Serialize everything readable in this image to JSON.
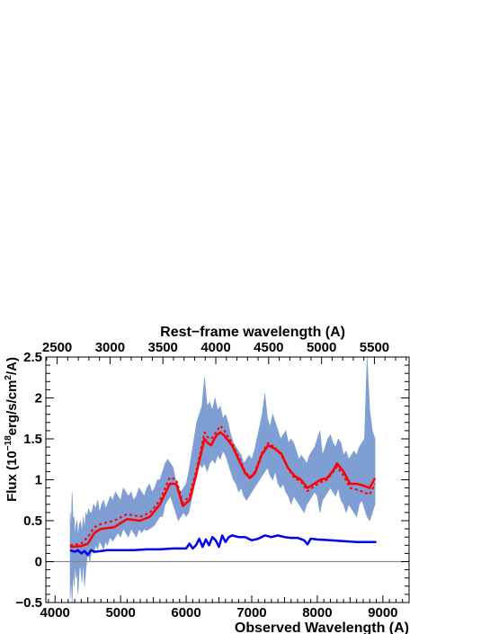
{
  "chart_data": {
    "type": "line",
    "xlabel": "Observed Wavelength (A)",
    "ylabel_prefix": "Flux (10",
    "ylabel_exp1": "−18",
    "ylabel_mid": "erg/s/cm",
    "ylabel_exp2": "2",
    "ylabel_suffix": "/A)",
    "top_xlabel": "Rest−frame wavelength (A)",
    "xlim": [
      3860,
      9400
    ],
    "ylim": [
      -0.5,
      2.5
    ],
    "x_ticks": [
      4000,
      5000,
      6000,
      7000,
      8000,
      9000
    ],
    "y_ticks": [
      -0.5,
      0,
      0.5,
      1,
      1.5,
      2,
      2.5
    ],
    "y_tick_labels": [
      "−0.5",
      "0",
      "0.5",
      "1",
      "1.5",
      "2",
      "2.5"
    ],
    "top_ticks": [
      2500,
      3000,
      3500,
      4000,
      4500,
      5000,
      5500
    ],
    "top_axis_observed_per_rest": 1.613,
    "zero_line": 0,
    "colors": {
      "observed": "#7f9fd4",
      "model": "#ff0000",
      "model_alt": "#ff0000",
      "sky": "#0000ee",
      "zero_line": "#888888"
    },
    "series": [
      {
        "key": "model",
        "style": "solid",
        "x": [
          4230,
          4400,
          4500,
          4600,
          4700,
          4900,
          5100,
          5300,
          5450,
          5600,
          5750,
          5850,
          5950,
          6050,
          6150,
          6220,
          6280,
          6330,
          6380,
          6430,
          6470,
          6520,
          6570,
          6620,
          6700,
          6800,
          6900,
          6970,
          7050,
          7150,
          7250,
          7350,
          7450,
          7550,
          7650,
          7750,
          7850,
          7950,
          8050,
          8150,
          8250,
          8300,
          8400,
          8500,
          8600,
          8700,
          8800,
          8880
        ],
        "y": [
          0.18,
          0.19,
          0.22,
          0.35,
          0.4,
          0.42,
          0.52,
          0.5,
          0.55,
          0.7,
          0.95,
          0.95,
          0.68,
          0.75,
          1.05,
          1.3,
          1.5,
          1.45,
          1.42,
          1.5,
          1.55,
          1.58,
          1.55,
          1.5,
          1.42,
          1.25,
          1.08,
          1.02,
          1.08,
          1.3,
          1.42,
          1.38,
          1.32,
          1.15,
          1.05,
          1.0,
          0.9,
          0.95,
          1.0,
          1.02,
          1.12,
          1.2,
          1.1,
          0.95,
          0.95,
          0.93,
          0.9,
          1.02
        ]
      },
      {
        "key": "model_alt",
        "style": "dashed",
        "x": [
          4230,
          4400,
          4500,
          4600,
          4700,
          4900,
          5100,
          5300,
          5450,
          5600,
          5750,
          5850,
          5950,
          6050,
          6150,
          6220,
          6280,
          6330,
          6380,
          6430,
          6470,
          6520,
          6570,
          6620,
          6700,
          6800,
          6900,
          6970,
          7050,
          7150,
          7250,
          7350,
          7450,
          7550,
          7650,
          7750,
          7850,
          7950,
          8050,
          8150,
          8250,
          8300,
          8400,
          8500,
          8600,
          8700,
          8800,
          8880
        ],
        "y": [
          0.2,
          0.22,
          0.3,
          0.42,
          0.46,
          0.5,
          0.58,
          0.55,
          0.6,
          0.75,
          1.03,
          1.0,
          0.72,
          0.8,
          1.1,
          1.35,
          1.58,
          1.52,
          1.5,
          1.55,
          1.6,
          1.66,
          1.62,
          1.55,
          1.45,
          1.28,
          1.1,
          1.03,
          1.1,
          1.32,
          1.45,
          1.4,
          1.3,
          1.15,
          1.02,
          0.98,
          0.86,
          0.92,
          0.97,
          1.0,
          1.1,
          1.16,
          1.05,
          0.9,
          0.88,
          0.85,
          0.82,
          0.95
        ]
      },
      {
        "key": "sky",
        "style": "solid",
        "x": [
          4230,
          4300,
          4350,
          4400,
          4450,
          4500,
          4550,
          4600,
          4700,
          4800,
          5000,
          5200,
          5400,
          5600,
          5800,
          6000,
          6050,
          6100,
          6150,
          6200,
          6250,
          6300,
          6350,
          6400,
          6450,
          6500,
          6550,
          6600,
          6650,
          6700,
          6800,
          6900,
          7000,
          7100,
          7200,
          7300,
          7400,
          7500,
          7600,
          7700,
          7800,
          7850,
          7900,
          8000,
          8200,
          8400,
          8600,
          8800,
          8900
        ],
        "y": [
          0.14,
          0.12,
          0.14,
          0.1,
          0.13,
          0.08,
          0.14,
          0.12,
          0.13,
          0.14,
          0.14,
          0.14,
          0.15,
          0.15,
          0.16,
          0.16,
          0.22,
          0.16,
          0.2,
          0.28,
          0.18,
          0.27,
          0.2,
          0.3,
          0.26,
          0.18,
          0.32,
          0.24,
          0.3,
          0.32,
          0.3,
          0.3,
          0.26,
          0.28,
          0.32,
          0.3,
          0.32,
          0.3,
          0.29,
          0.29,
          0.26,
          0.21,
          0.28,
          0.27,
          0.26,
          0.25,
          0.24,
          0.24,
          0.24
        ]
      }
    ],
    "observed": {
      "key": "observed",
      "x": [
        4230,
        4245,
        4260,
        4275,
        4290,
        4305,
        4320,
        4335,
        4350,
        4370,
        4390,
        4410,
        4430,
        4450,
        4470,
        4490,
        4510,
        4530,
        4560,
        4590,
        4620,
        4650,
        4680,
        4710,
        4740,
        4770,
        4800,
        4840,
        4880,
        4920,
        4960,
        5000,
        5040,
        5080,
        5120,
        5160,
        5200,
        5240,
        5280,
        5320,
        5360,
        5400,
        5440,
        5480,
        5520,
        5560,
        5600,
        5640,
        5680,
        5720,
        5760,
        5800,
        5840,
        5880,
        5920,
        5960,
        6000,
        6040,
        6080,
        6120,
        6160,
        6200,
        6240,
        6280,
        6320,
        6360,
        6400,
        6440,
        6480,
        6520,
        6560,
        6600,
        6640,
        6680,
        6720,
        6760,
        6800,
        6840,
        6880,
        6920,
        6960,
        7000,
        7040,
        7080,
        7120,
        7160,
        7200,
        7240,
        7280,
        7320,
        7360,
        7400,
        7440,
        7480,
        7520,
        7560,
        7600,
        7640,
        7680,
        7720,
        7760,
        7800,
        7840,
        7880,
        7920,
        7960,
        8000,
        8040,
        8080,
        8120,
        8160,
        8200,
        8240,
        8280,
        8320,
        8360,
        8400,
        8440,
        8480,
        8520,
        8560,
        8600,
        8640,
        8680,
        8720,
        8760,
        8800,
        8840,
        8880
      ],
      "lo": [
        -0.45,
        -0.2,
        -0.5,
        -0.1,
        -0.3,
        0.0,
        -0.2,
        -0.1,
        -0.4,
        -0.1,
        -0.05,
        -0.25,
        0.0,
        -0.3,
        -0.1,
        0.05,
        0.1,
        0.0,
        0.15,
        0.1,
        0.2,
        0.15,
        0.25,
        0.2,
        0.15,
        0.25,
        0.2,
        0.3,
        0.25,
        0.3,
        0.35,
        0.3,
        0.4,
        0.35,
        0.3,
        0.4,
        0.35,
        0.3,
        0.4,
        0.35,
        0.4,
        0.38,
        0.4,
        0.42,
        0.45,
        0.5,
        0.55,
        0.55,
        0.7,
        0.75,
        0.8,
        0.7,
        0.6,
        0.5,
        0.55,
        0.6,
        0.55,
        0.6,
        0.75,
        0.9,
        1.1,
        1.2,
        1.15,
        1.2,
        1.1,
        1.2,
        1.25,
        1.2,
        1.3,
        1.25,
        1.35,
        1.3,
        1.2,
        1.1,
        1.0,
        0.95,
        0.85,
        0.9,
        0.8,
        0.75,
        0.8,
        0.85,
        0.9,
        0.95,
        1.0,
        1.05,
        1.1,
        1.15,
        1.05,
        1.0,
        1.1,
        0.95,
        0.9,
        0.95,
        0.85,
        0.8,
        0.7,
        0.8,
        0.75,
        0.7,
        0.65,
        0.6,
        0.7,
        0.75,
        0.8,
        0.85,
        0.8,
        0.6,
        0.75,
        0.8,
        0.85,
        0.9,
        0.85,
        0.8,
        0.9,
        0.75,
        0.7,
        0.6,
        0.7,
        0.65,
        0.6,
        0.55,
        0.7,
        0.75,
        0.65,
        0.55,
        0.5,
        0.6,
        0.7
      ],
      "hi": [
        0.6,
        0.4,
        0.85,
        0.5,
        0.55,
        0.3,
        0.45,
        0.5,
        0.3,
        0.45,
        0.5,
        0.35,
        0.55,
        0.4,
        0.6,
        0.55,
        0.65,
        0.6,
        0.6,
        0.7,
        0.65,
        0.75,
        0.6,
        0.7,
        0.75,
        0.65,
        0.7,
        0.8,
        0.75,
        0.85,
        0.8,
        0.75,
        0.9,
        0.85,
        0.8,
        0.85,
        0.75,
        0.8,
        0.9,
        0.85,
        0.8,
        0.9,
        0.95,
        0.85,
        0.9,
        1.0,
        1.0,
        1.1,
        1.2,
        1.25,
        1.2,
        1.15,
        1.0,
        0.9,
        0.85,
        0.9,
        0.95,
        1.1,
        1.3,
        1.5,
        1.7,
        1.8,
        1.9,
        2.25,
        1.9,
        1.95,
        1.85,
        2.0,
        1.85,
        1.9,
        1.75,
        1.8,
        1.7,
        1.55,
        1.45,
        1.4,
        1.35,
        1.3,
        1.2,
        1.25,
        1.3,
        1.25,
        1.35,
        1.5,
        1.65,
        1.8,
        2.05,
        1.75,
        1.65,
        1.8,
        1.7,
        1.6,
        1.5,
        1.55,
        1.6,
        1.45,
        1.5,
        1.45,
        1.35,
        1.25,
        1.3,
        1.25,
        1.2,
        1.3,
        1.35,
        1.4,
        1.5,
        1.6,
        1.3,
        1.4,
        1.5,
        1.55,
        1.45,
        1.4,
        1.5,
        1.45,
        1.3,
        1.35,
        1.25,
        1.3,
        1.35,
        1.3,
        1.4,
        1.45,
        1.5,
        2.5,
        1.85,
        1.6,
        1.5
      ]
    }
  }
}
